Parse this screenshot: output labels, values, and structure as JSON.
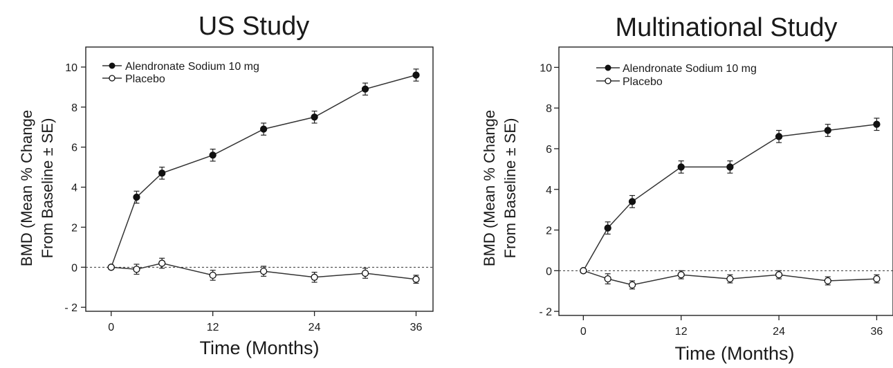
{
  "chart_data": [
    {
      "type": "line",
      "title": "US Study",
      "xlabel": "Time (Months)",
      "ylabel_lines": [
        "BMD (Mean % Change",
        "From Baseline ± SE)"
      ],
      "x_ticks": [
        "0",
        "12",
        "24",
        "36"
      ],
      "y_ticks": [
        "- 2",
        "0",
        "2",
        "4",
        "6",
        "8",
        "10"
      ],
      "xlim": [
        -3,
        38
      ],
      "ylim": [
        -2.2,
        11
      ],
      "grid": false,
      "reference_line_y": 0,
      "legend_position": "top-left",
      "series": [
        {
          "name": "Alendronate Sodium 10 mg",
          "marker": "filled-circle",
          "x": [
            0,
            3,
            6,
            12,
            18,
            24,
            30,
            36
          ],
          "y": [
            0,
            3.5,
            4.7,
            5.6,
            6.9,
            7.5,
            8.9,
            9.6
          ],
          "se": [
            0,
            0.3,
            0.3,
            0.3,
            0.3,
            0.3,
            0.3,
            0.3
          ]
        },
        {
          "name": "Placebo",
          "marker": "open-circle",
          "x": [
            0,
            3,
            6,
            12,
            18,
            24,
            30,
            36
          ],
          "y": [
            0,
            -0.1,
            0.2,
            -0.4,
            -0.2,
            -0.5,
            -0.3,
            -0.6
          ],
          "se": [
            0,
            0.25,
            0.25,
            0.25,
            0.25,
            0.25,
            0.25,
            0.2
          ]
        }
      ]
    },
    {
      "type": "line",
      "title": "Multinational Study",
      "xlabel": "Time (Months)",
      "ylabel_lines": [
        "BMD (Mean % Change",
        "From Baseline ± SE)"
      ],
      "x_ticks": [
        "0",
        "12",
        "24",
        "36"
      ],
      "y_ticks": [
        "- 2",
        "0",
        "2",
        "4",
        "6",
        "8",
        "10"
      ],
      "xlim": [
        -3,
        38
      ],
      "ylim": [
        -2.2,
        11
      ],
      "grid": false,
      "reference_line_y": 0,
      "legend_position": "top-left",
      "series": [
        {
          "name": "Alendronate Sodium 10 mg",
          "marker": "filled-circle",
          "x": [
            0,
            3,
            6,
            12,
            18,
            24,
            30,
            36
          ],
          "y": [
            0,
            2.1,
            3.4,
            5.1,
            5.1,
            6.6,
            6.9,
            7.2
          ],
          "se": [
            0,
            0.3,
            0.3,
            0.3,
            0.3,
            0.3,
            0.3,
            0.3
          ]
        },
        {
          "name": "Placebo",
          "marker": "open-circle",
          "x": [
            0,
            3,
            6,
            12,
            18,
            24,
            30,
            36
          ],
          "y": [
            0,
            -0.4,
            -0.7,
            -0.2,
            -0.4,
            -0.2,
            -0.5,
            -0.4
          ],
          "se": [
            0,
            0.25,
            0.2,
            0.2,
            0.2,
            0.2,
            0.2,
            0.2
          ]
        }
      ]
    }
  ]
}
